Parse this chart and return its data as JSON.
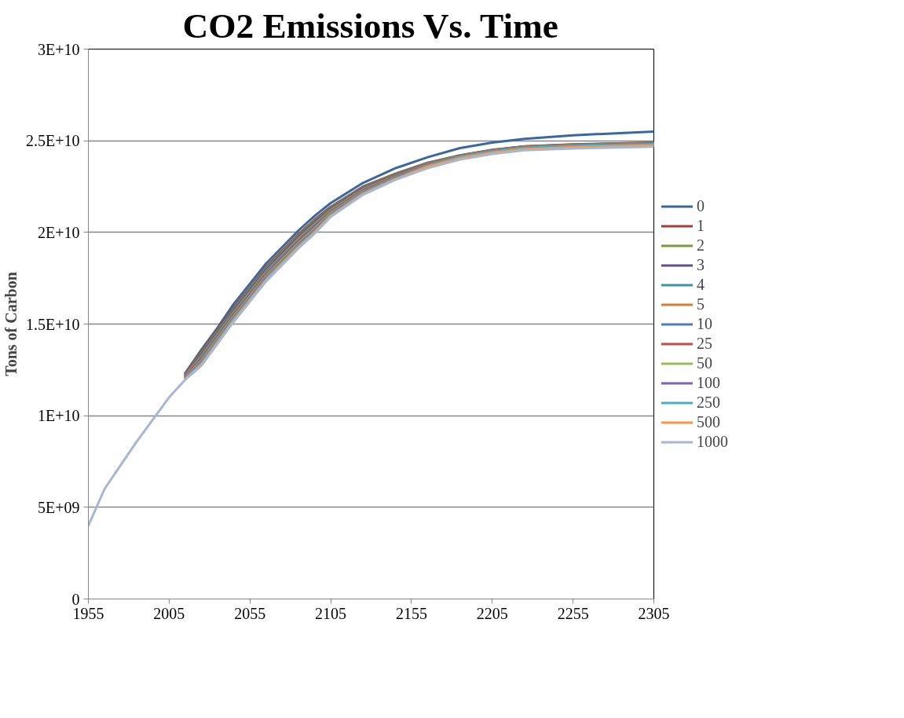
{
  "chart_data": {
    "type": "line",
    "title": "CO2 Emissions Vs. Time",
    "ylabel": "Tons of Carbon",
    "x": [
      1955,
      1965,
      1975,
      1985,
      1995,
      2005,
      2015,
      2025,
      2035,
      2045,
      2055,
      2065,
      2075,
      2085,
      2095,
      2105,
      2125,
      2145,
      2165,
      2185,
      2205,
      2225,
      2255,
      2305
    ],
    "xlim": [
      1955,
      2305
    ],
    "xticks": [
      1955,
      2005,
      2055,
      2105,
      2155,
      2205,
      2255,
      2305
    ],
    "ylim": [
      0,
      30000000000.0
    ],
    "yticks": [
      {
        "value": 0,
        "label": "0"
      },
      {
        "value": 5000000000.0,
        "label": "5E+09"
      },
      {
        "value": 10000000000.0,
        "label": "1E+10"
      },
      {
        "value": 15000000000.0,
        "label": "1.5E+10"
      },
      {
        "value": 20000000000.0,
        "label": "2E+10"
      },
      {
        "value": 25000000000.0,
        "label": "2.5E+10"
      },
      {
        "value": 30000000000.0,
        "label": "3E+10"
      }
    ],
    "grid": "y",
    "legend": "right",
    "marker": "none",
    "line_style": "solid",
    "series": [
      {
        "name": "0",
        "color": "#3a67a0",
        "x": [
          2015,
          2025,
          2035,
          2045,
          2055,
          2065,
          2075,
          2085,
          2095,
          2105,
          2125,
          2145,
          2165,
          2185,
          2205,
          2225,
          2255,
          2305
        ],
        "values": [
          12330000000.0,
          13600000000.0,
          14800000000.0,
          16100000000.0,
          17200000000.0,
          18300000000.0,
          19200000000.0,
          20100000000.0,
          20900000000.0,
          21600000000.0,
          22700000000.0,
          23500000000.0,
          24100000000.0,
          24600000000.0,
          24900000000.0,
          25100000000.0,
          25300000000.0,
          25500000000.0
        ]
      },
      {
        "name": "1",
        "color": "#a33e3b",
        "x": [
          2015,
          2025,
          2035,
          2045,
          2055,
          2065,
          2075,
          2085,
          2095,
          2105,
          2125,
          2145,
          2165,
          2185,
          2205,
          2225,
          2255,
          2305
        ],
        "values": [
          12300000000.0,
          13500000000.0,
          14700000000.0,
          15900000000.0,
          17000000000.0,
          18100000000.0,
          19000000000.0,
          19900000000.0,
          20700000000.0,
          21400000000.0,
          22500000000.0,
          23200000000.0,
          23800000000.0,
          24200000000.0,
          24500000000.0,
          24700000000.0,
          24800000000.0,
          24900000000.0
        ]
      },
      {
        "name": "2",
        "color": "#7b9a3f",
        "x": [
          2015,
          2025,
          2035,
          2045,
          2055,
          2065,
          2075,
          2085,
          2095,
          2105,
          2125,
          2145,
          2165,
          2185,
          2205,
          2225,
          2255,
          2305
        ],
        "values": [
          12270000000.0,
          13430000000.0,
          14630000000.0,
          15830000000.0,
          16930000000.0,
          18030000000.0,
          18930000000.0,
          19830000000.0,
          20630000000.0,
          21350000000.0,
          22460000000.0,
          23170000000.0,
          23780000000.0,
          24190000000.0,
          24490000000.0,
          24690000000.0,
          24790000000.0,
          24890000000.0
        ]
      },
      {
        "name": "3",
        "color": "#654e87",
        "x": [
          2015,
          2025,
          2035,
          2045,
          2055,
          2065,
          2075,
          2085,
          2095,
          2105,
          2125,
          2145,
          2165,
          2185,
          2205,
          2225,
          2255,
          2305
        ],
        "values": [
          12240000000.0,
          13360000000.0,
          14560000000.0,
          15760000000.0,
          16860000000.0,
          17960000000.0,
          18860000000.0,
          19760000000.0,
          20560000000.0,
          21300000000.0,
          22420000000.0,
          23140000000.0,
          23760000000.0,
          24180000000.0,
          24480000000.0,
          24680000000.0,
          24780000000.0,
          24880000000.0
        ]
      },
      {
        "name": "4",
        "color": "#3a94a8",
        "x": [
          2015,
          2025,
          2035,
          2045,
          2055,
          2065,
          2075,
          2085,
          2095,
          2105,
          2125,
          2145,
          2165,
          2185,
          2205,
          2225,
          2255,
          2305
        ],
        "values": [
          12210000000.0,
          13290000000.0,
          14490000000.0,
          15690000000.0,
          16790000000.0,
          17890000000.0,
          18790000000.0,
          19690000000.0,
          20490000000.0,
          21250000000.0,
          22380000000.0,
          23110000000.0,
          23740000000.0,
          24170000000.0,
          24470000000.0,
          24670000000.0,
          24770000000.0,
          24870000000.0
        ]
      },
      {
        "name": "5",
        "color": "#d47f36",
        "x": [
          2015,
          2025,
          2035,
          2045,
          2055,
          2065,
          2075,
          2085,
          2095,
          2105,
          2125,
          2145,
          2165,
          2185,
          2205,
          2225,
          2255,
          2305
        ],
        "values": [
          12180000000.0,
          13220000000.0,
          14420000000.0,
          15620000000.0,
          16720000000.0,
          17820000000.0,
          18720000000.0,
          19620000000.0,
          20420000000.0,
          21200000000.0,
          22340000000.0,
          23080000000.0,
          23720000000.0,
          24160000000.0,
          24460000000.0,
          24660000000.0,
          24760000000.0,
          24860000000.0
        ]
      },
      {
        "name": "10",
        "color": "#4a7ec0",
        "x": [
          2015,
          2025,
          2035,
          2045,
          2055,
          2065,
          2075,
          2085,
          2095,
          2105,
          2125,
          2145,
          2165,
          2185,
          2205,
          2225,
          2255,
          2305
        ],
        "values": [
          12150000000.0,
          13150000000.0,
          14350000000.0,
          15550000000.0,
          16650000000.0,
          17750000000.0,
          18650000000.0,
          19550000000.0,
          20350000000.0,
          21150000000.0,
          22300000000.0,
          23050000000.0,
          23700000000.0,
          24150000000.0,
          24450000000.0,
          24650000000.0,
          24750000000.0,
          24850000000.0
        ]
      },
      {
        "name": "25",
        "color": "#c24d49",
        "x": [
          2015,
          2025,
          2035,
          2045,
          2055,
          2065,
          2075,
          2085,
          2095,
          2105,
          2125,
          2145,
          2165,
          2185,
          2205,
          2225,
          2255,
          2305
        ],
        "values": [
          12120000000.0,
          13080000000.0,
          14280000000.0,
          15480000000.0,
          16580000000.0,
          17680000000.0,
          18580000000.0,
          19480000000.0,
          20280000000.0,
          21100000000.0,
          22260000000.0,
          23020000000.0,
          23680000000.0,
          24140000000.0,
          24440000000.0,
          24640000000.0,
          24740000000.0,
          24840000000.0
        ]
      },
      {
        "name": "50",
        "color": "#9bbb59",
        "x": [
          2015,
          2025,
          2035,
          2045,
          2055,
          2065,
          2075,
          2085,
          2095,
          2105,
          2125,
          2145,
          2165,
          2185,
          2205,
          2225,
          2255,
          2305
        ],
        "values": [
          12090000000.0,
          13010000000.0,
          14210000000.0,
          15410000000.0,
          16510000000.0,
          17610000000.0,
          18510000000.0,
          19410000000.0,
          20210000000.0,
          21050000000.0,
          22220000000.0,
          22990000000.0,
          23660000000.0,
          24130000000.0,
          24430000000.0,
          24630000000.0,
          24730000000.0,
          24830000000.0
        ]
      },
      {
        "name": "100",
        "color": "#8064a2",
        "x": [
          2015,
          2025,
          2035,
          2045,
          2055,
          2065,
          2075,
          2085,
          2095,
          2105,
          2125,
          2145,
          2165,
          2185,
          2205,
          2225,
          2255,
          2305
        ],
        "values": [
          12060000000.0,
          12940000000.0,
          14140000000.0,
          15340000000.0,
          16440000000.0,
          17540000000.0,
          18440000000.0,
          19340000000.0,
          20140000000.0,
          21000000000.0,
          22180000000.0,
          22960000000.0,
          23640000000.0,
          24120000000.0,
          24420000000.0,
          24620000000.0,
          24720000000.0,
          24820000000.0
        ]
      },
      {
        "name": "250",
        "color": "#4bacc6",
        "x": [
          2015,
          2025,
          2035,
          2045,
          2055,
          2065,
          2075,
          2085,
          2095,
          2105,
          2125,
          2145,
          2165,
          2185,
          2205,
          2225,
          2255,
          2305
        ],
        "values": [
          12030000000.0,
          12870000000.0,
          14070000000.0,
          15270000000.0,
          16370000000.0,
          17470000000.0,
          18370000000.0,
          19270000000.0,
          20070000000.0,
          20950000000.0,
          22140000000.0,
          22930000000.0,
          23620000000.0,
          24110000000.0,
          24410000000.0,
          24610000000.0,
          24710000000.0,
          24810000000.0
        ]
      },
      {
        "name": "500",
        "color": "#f79646",
        "x": [
          2015,
          2025,
          2035,
          2045,
          2055,
          2065,
          2075,
          2085,
          2095,
          2105,
          2125,
          2145,
          2165,
          2185,
          2205,
          2225,
          2255,
          2305
        ],
        "values": [
          12000000000.0,
          12800000000.0,
          14000000000.0,
          15200000000.0,
          16300000000.0,
          17400000000.0,
          18300000000.0,
          19200000000.0,
          20000000000.0,
          20900000000.0,
          22100000000.0,
          22900000000.0,
          23600000000.0,
          24050000000.0,
          24350000000.0,
          24550000000.0,
          24650000000.0,
          24750000000.0
        ]
      },
      {
        "name": "1000",
        "color": "#a6b7d6",
        "values": [
          4000000000.0,
          6000000000.0,
          7300000000.0,
          8600000000.0,
          9800000000.0,
          11000000000.0,
          11970000000.0,
          12730000000.0,
          13930000000.0,
          15130000000.0,
          16230000000.0,
          17330000000.0,
          18230000000.0,
          19130000000.0,
          19930000000.0,
          20850000000.0,
          22060000000.0,
          22870000000.0,
          23500000000.0,
          23980000000.0,
          24280000000.0,
          24480000000.0,
          24580000000.0,
          24680000000.0
        ]
      }
    ]
  }
}
